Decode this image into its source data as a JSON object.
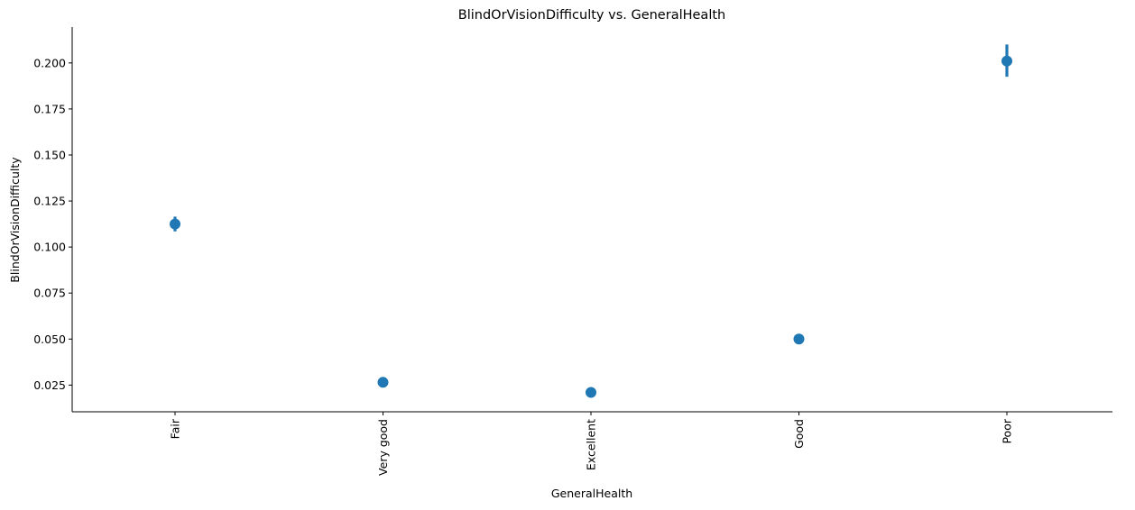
{
  "chart_data": {
    "type": "scatter",
    "subtype": "pointplot-with-error-bars",
    "title": "BlindOrVisionDifficulty vs. GeneralHealth",
    "xlabel": "GeneralHealth",
    "ylabel": "BlindOrVisionDifficulty",
    "categories": [
      "Fair",
      "Very good",
      "Excellent",
      "Good",
      "Poor"
    ],
    "values": [
      0.1125,
      0.0265,
      0.021,
      0.05,
      0.201
    ],
    "ci_low": [
      0.1085,
      0.0255,
      0.0202,
      0.049,
      0.1925
    ],
    "ci_high": [
      0.1165,
      0.0275,
      0.0218,
      0.051,
      0.21
    ],
    "ylim": [
      0.0105,
      0.2195
    ],
    "yticks": [
      0.025,
      0.05,
      0.075,
      0.1,
      0.125,
      0.15,
      0.175,
      0.2
    ],
    "ytick_labels": [
      "0.025",
      "0.050",
      "0.075",
      "0.100",
      "0.125",
      "0.150",
      "0.175",
      "0.200"
    ],
    "grid": false,
    "color": "#1f77b4",
    "x_tick_rotation": "vertical"
  }
}
